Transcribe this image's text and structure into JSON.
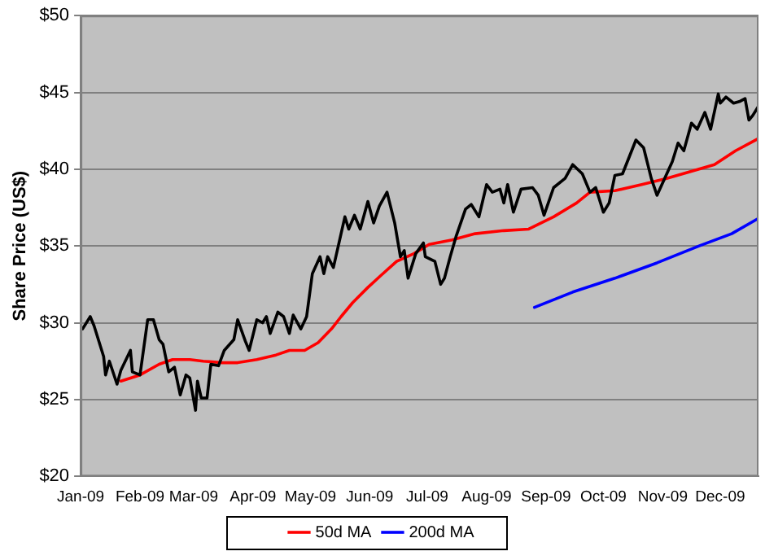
{
  "chart_data": {
    "type": "line",
    "ylabel": "Share Price (US$)",
    "xlim": [
      "2009-01-01",
      "2009-12-21"
    ],
    "ylim": [
      20,
      50
    ],
    "xticks": [
      {
        "value": "2009-01-01",
        "label": "Jan-09"
      },
      {
        "value": "2009-02-01",
        "label": "Feb-09"
      },
      {
        "value": "2009-03-01",
        "label": "Mar-09"
      },
      {
        "value": "2009-04-01",
        "label": "Apr-09"
      },
      {
        "value": "2009-05-01",
        "label": "May-09"
      },
      {
        "value": "2009-06-01",
        "label": "Jun-09"
      },
      {
        "value": "2009-07-01",
        "label": "Jul-09"
      },
      {
        "value": "2009-08-01",
        "label": "Aug-09"
      },
      {
        "value": "2009-09-01",
        "label": "Sep-09"
      },
      {
        "value": "2009-10-01",
        "label": "Oct-09"
      },
      {
        "value": "2009-11-01",
        "label": "Nov-09"
      },
      {
        "value": "2009-12-01",
        "label": "Dec-09"
      }
    ],
    "yticks": [
      {
        "value": 20,
        "label": "$20"
      },
      {
        "value": 25,
        "label": "$25"
      },
      {
        "value": 30,
        "label": "$30"
      },
      {
        "value": 35,
        "label": "$35"
      },
      {
        "value": 40,
        "label": "$40"
      },
      {
        "value": 45,
        "label": "$45"
      },
      {
        "value": 50,
        "label": "$50"
      }
    ],
    "grid": "y",
    "legend": "bottom",
    "marker": "none",
    "line_style": "solid",
    "series": [
      {
        "color": "#000000",
        "x": [
          "2009-01-02",
          "2009-01-06",
          "2009-01-08",
          "2009-01-13",
          "2009-01-14",
          "2009-01-16",
          "2009-01-20",
          "2009-01-22",
          "2009-01-27",
          "2009-01-28",
          "2009-02-01",
          "2009-02-05",
          "2009-02-08",
          "2009-02-11",
          "2009-02-13",
          "2009-02-16",
          "2009-02-19",
          "2009-02-22",
          "2009-02-25",
          "2009-02-27",
          "2009-03-02",
          "2009-03-03",
          "2009-03-05",
          "2009-03-08",
          "2009-03-10",
          "2009-03-14",
          "2009-03-17",
          "2009-03-22",
          "2009-03-24",
          "2009-03-28",
          "2009-03-30",
          "2009-04-03",
          "2009-04-06",
          "2009-04-08",
          "2009-04-10",
          "2009-04-14",
          "2009-04-17",
          "2009-04-20",
          "2009-04-22",
          "2009-04-26",
          "2009-04-29",
          "2009-05-02",
          "2009-05-06",
          "2009-05-08",
          "2009-05-10",
          "2009-05-13",
          "2009-05-17",
          "2009-05-19",
          "2009-05-21",
          "2009-05-24",
          "2009-05-27",
          "2009-05-31",
          "2009-06-03",
          "2009-06-06",
          "2009-06-10",
          "2009-06-14",
          "2009-06-17",
          "2009-06-19",
          "2009-06-21",
          "2009-06-25",
          "2009-06-29",
          "2009-06-30",
          "2009-07-05",
          "2009-07-08",
          "2009-07-10",
          "2009-07-13",
          "2009-07-16",
          "2009-07-21",
          "2009-07-24",
          "2009-07-28",
          "2009-08-01",
          "2009-08-04",
          "2009-08-08",
          "2009-08-10",
          "2009-08-12",
          "2009-08-15",
          "2009-08-19",
          "2009-08-25",
          "2009-08-28",
          "2009-08-31",
          "2009-09-05",
          "2009-09-11",
          "2009-09-15",
          "2009-09-20",
          "2009-09-24",
          "2009-09-27",
          "2009-10-01",
          "2009-10-04",
          "2009-10-07",
          "2009-10-11",
          "2009-10-18",
          "2009-10-22",
          "2009-10-26",
          "2009-10-29",
          "2009-11-02",
          "2009-11-06",
          "2009-11-09",
          "2009-11-12",
          "2009-11-16",
          "2009-11-19",
          "2009-11-23",
          "2009-11-26",
          "2009-11-30",
          "2009-12-01",
          "2009-12-04",
          "2009-12-08",
          "2009-12-11",
          "2009-12-14",
          "2009-12-16",
          "2009-12-18",
          "2009-12-21"
        ],
        "values": [
          29.6,
          30.4,
          29.8,
          27.8,
          26.6,
          27.5,
          26.0,
          26.9,
          28.2,
          26.8,
          26.6,
          30.2,
          30.2,
          28.9,
          28.6,
          26.8,
          27.1,
          25.3,
          26.6,
          26.4,
          24.3,
          26.2,
          25.1,
          25.1,
          27.3,
          27.2,
          28.2,
          28.9,
          30.2,
          28.8,
          28.2,
          30.2,
          30.0,
          30.4,
          29.3,
          30.7,
          30.4,
          29.3,
          30.5,
          29.6,
          30.4,
          33.2,
          34.3,
          33.2,
          34.3,
          33.6,
          35.8,
          36.9,
          36.1,
          37.0,
          36.1,
          37.9,
          36.5,
          37.6,
          38.5,
          36.5,
          34.3,
          34.7,
          32.9,
          34.5,
          35.2,
          34.3,
          34.0,
          32.5,
          32.9,
          34.3,
          35.6,
          37.4,
          37.7,
          36.9,
          39.0,
          38.5,
          38.7,
          37.8,
          39.0,
          37.2,
          38.7,
          38.8,
          38.3,
          37.0,
          38.8,
          39.4,
          40.3,
          39.7,
          38.5,
          38.8,
          37.2,
          37.8,
          39.6,
          39.7,
          41.9,
          41.4,
          39.4,
          38.3,
          39.4,
          40.5,
          41.7,
          41.2,
          43.0,
          42.6,
          43.7,
          42.6,
          44.9,
          44.3,
          44.7,
          44.3,
          44.4,
          44.6,
          43.2,
          43.5,
          44.1
        ]
      },
      {
        "name": "50d MA",
        "color": "#ff0000",
        "x": [
          "2009-01-22",
          "2009-02-01",
          "2009-02-11",
          "2009-02-18",
          "2009-02-27",
          "2009-03-06",
          "2009-03-16",
          "2009-03-24",
          "2009-04-03",
          "2009-04-13",
          "2009-04-20",
          "2009-04-28",
          "2009-05-05",
          "2009-05-12",
          "2009-05-17",
          "2009-05-23",
          "2009-05-31",
          "2009-06-07",
          "2009-06-15",
          "2009-06-24",
          "2009-07-02",
          "2009-07-14",
          "2009-07-26",
          "2009-08-10",
          "2009-08-23",
          "2009-09-05",
          "2009-09-17",
          "2009-09-24",
          "2009-10-07",
          "2009-10-21",
          "2009-11-03",
          "2009-11-17",
          "2009-11-28",
          "2009-12-09",
          "2009-12-21"
        ],
        "values": [
          26.2,
          26.6,
          27.3,
          27.6,
          27.6,
          27.5,
          27.4,
          27.4,
          27.6,
          27.9,
          28.2,
          28.2,
          28.7,
          29.6,
          30.4,
          31.3,
          32.3,
          33.1,
          34.0,
          34.5,
          35.1,
          35.4,
          35.8,
          36.0,
          36.1,
          36.9,
          37.8,
          38.5,
          38.6,
          39.0,
          39.4,
          39.9,
          40.3,
          41.2,
          42.0
        ]
      },
      {
        "name": "200d MA",
        "color": "#0000ff",
        "x": [
          "2009-08-26",
          "2009-09-15",
          "2009-10-07",
          "2009-10-29",
          "2009-11-20",
          "2009-12-07",
          "2009-12-21"
        ],
        "values": [
          31.0,
          32.0,
          32.9,
          33.9,
          35.0,
          35.8,
          36.8
        ]
      }
    ]
  }
}
